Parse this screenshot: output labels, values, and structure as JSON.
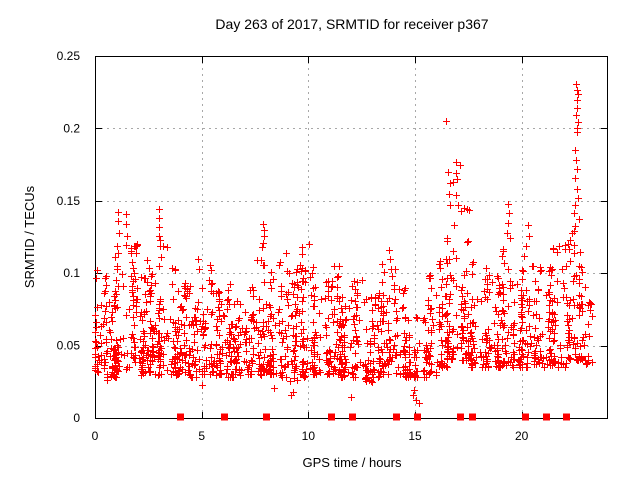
{
  "chart_data": {
    "type": "scatter",
    "title": "Day 263 of 2017, SRMTID for receiver p367",
    "xlabel": "GPS time / hours",
    "ylabel": "SRMTID / TECUs",
    "xlim": [
      0,
      24
    ],
    "ylim": [
      0,
      0.25
    ],
    "xticks": [
      0,
      5,
      10,
      15,
      20
    ],
    "xtick_labels": [
      "0",
      "5",
      "10",
      "15",
      "20"
    ],
    "yticks": [
      0,
      0.05,
      0.1,
      0.15,
      0.2,
      0.25
    ],
    "ytick_labels": [
      "0",
      "0.05",
      "0.1",
      "0.15",
      "0.2",
      "0.25"
    ],
    "grid": "dotted",
    "legend_position": "none",
    "background_color": "#ffffff",
    "axis_color": "#000000",
    "grid_color": "#a8a8a8",
    "series": [
      {
        "name": "SRMTID",
        "marker": "plus",
        "color": "#ff0000",
        "marker_size": 7,
        "bin_format": "[hour_start, hour_end, point_count, y_min, y_max]",
        "band_bins": [
          [
            0,
            0.5,
            42,
            0.032,
            0.105
          ],
          [
            0.5,
            1,
            38,
            0.028,
            0.085
          ],
          [
            1,
            1.5,
            42,
            0.032,
            0.12
          ],
          [
            1.5,
            2,
            46,
            0.035,
            0.125
          ],
          [
            2,
            2.5,
            42,
            0.03,
            0.1
          ],
          [
            2.5,
            3,
            40,
            0.03,
            0.11
          ],
          [
            3,
            3.5,
            42,
            0.03,
            0.125
          ],
          [
            3.5,
            4,
            40,
            0.03,
            0.115
          ],
          [
            4,
            4.5,
            38,
            0.03,
            0.1
          ],
          [
            4.5,
            5,
            36,
            0.028,
            0.082
          ],
          [
            5,
            5.5,
            38,
            0.03,
            0.098
          ],
          [
            5.5,
            6,
            36,
            0.03,
            0.088
          ],
          [
            6,
            6.5,
            38,
            0.028,
            0.095
          ],
          [
            6.5,
            7,
            36,
            0.028,
            0.088
          ],
          [
            7,
            7.5,
            38,
            0.03,
            0.092
          ],
          [
            7.5,
            8,
            42,
            0.03,
            0.12
          ],
          [
            8,
            8.5,
            40,
            0.03,
            0.108
          ],
          [
            8.5,
            9,
            38,
            0.028,
            0.118
          ],
          [
            9,
            9.5,
            38,
            0.025,
            0.108
          ],
          [
            9.5,
            10,
            38,
            0.028,
            0.112
          ],
          [
            10,
            10.5,
            38,
            0.03,
            0.112
          ],
          [
            10.5,
            11,
            36,
            0.03,
            0.095
          ],
          [
            11,
            11.5,
            38,
            0.03,
            0.106
          ],
          [
            11.5,
            12,
            36,
            0.028,
            0.09
          ],
          [
            12,
            12.5,
            36,
            0.028,
            0.1
          ],
          [
            12.5,
            13,
            34,
            0.025,
            0.085
          ],
          [
            13,
            13.5,
            36,
            0.028,
            0.09
          ],
          [
            13.5,
            14,
            38,
            0.03,
            0.11
          ],
          [
            14,
            14.5,
            34,
            0.03,
            0.094
          ],
          [
            14.5,
            15,
            32,
            0.028,
            0.075
          ],
          [
            15,
            15.5,
            30,
            0.028,
            0.07
          ],
          [
            15.5,
            16,
            34,
            0.03,
            0.102
          ],
          [
            16,
            16.5,
            38,
            0.035,
            0.112
          ],
          [
            16.5,
            17,
            42,
            0.04,
            0.13
          ],
          [
            17,
            17.5,
            40,
            0.04,
            0.125
          ],
          [
            17.5,
            18,
            38,
            0.035,
            0.115
          ],
          [
            18,
            18.5,
            36,
            0.035,
            0.105
          ],
          [
            18.5,
            19,
            36,
            0.035,
            0.11
          ],
          [
            19,
            19.5,
            38,
            0.035,
            0.118
          ],
          [
            19.5,
            20,
            36,
            0.035,
            0.105
          ],
          [
            20,
            20.5,
            38,
            0.035,
            0.12
          ],
          [
            20.5,
            21,
            36,
            0.035,
            0.11
          ],
          [
            21,
            21.5,
            38,
            0.035,
            0.112
          ],
          [
            21.5,
            22,
            38,
            0.035,
            0.12
          ],
          [
            22,
            22.5,
            40,
            0.04,
            0.135
          ],
          [
            22.5,
            23,
            40,
            0.04,
            0.128
          ],
          [
            23,
            23.3,
            14,
            0.035,
            0.09
          ]
        ],
        "outlier_points": [
          [
            0.55,
            0.026
          ],
          [
            1.1,
            0.142
          ],
          [
            1.08,
            0.136
          ],
          [
            1.45,
            0.141
          ],
          [
            1.47,
            0.134
          ],
          [
            1.12,
            0.128
          ],
          [
            1.5,
            0.126
          ],
          [
            2.98,
            0.144
          ],
          [
            3.0,
            0.138
          ],
          [
            3.02,
            0.132
          ],
          [
            2.99,
            0.126
          ],
          [
            3.05,
            0.119
          ],
          [
            4.85,
            0.11
          ],
          [
            4.88,
            0.103
          ],
          [
            5.0,
            0.023
          ],
          [
            5.4,
            0.106
          ],
          [
            5.45,
            0.102
          ],
          [
            7.88,
            0.134
          ],
          [
            7.9,
            0.13
          ],
          [
            7.93,
            0.126
          ],
          [
            7.87,
            0.121
          ],
          [
            8.4,
            0.021
          ],
          [
            9.2,
            0.016
          ],
          [
            9.27,
            0.018
          ],
          [
            9.68,
            0.118
          ],
          [
            9.72,
            0.113
          ],
          [
            10.02,
            0.12
          ],
          [
            12.0,
            0.0145
          ],
          [
            13.78,
            0.116
          ],
          [
            13.83,
            0.11
          ],
          [
            14.05,
            0.103
          ],
          [
            14.9,
            0.016
          ],
          [
            14.95,
            0.019
          ],
          [
            15.05,
            0.0125
          ],
          [
            15.2,
            0.0105
          ],
          [
            16.45,
            0.205
          ],
          [
            16.9,
            0.177
          ],
          [
            17.1,
            0.175
          ],
          [
            16.55,
            0.17
          ],
          [
            16.92,
            0.169
          ],
          [
            16.95,
            0.165
          ],
          [
            16.65,
            0.162
          ],
          [
            16.8,
            0.163
          ],
          [
            16.6,
            0.155
          ],
          [
            16.9,
            0.154
          ],
          [
            16.65,
            0.147
          ],
          [
            17.0,
            0.147
          ],
          [
            17.3,
            0.145
          ],
          [
            17.45,
            0.144
          ],
          [
            17.55,
            0.1435
          ],
          [
            17.15,
            0.143
          ],
          [
            16.85,
            0.133
          ],
          [
            19.35,
            0.148
          ],
          [
            19.4,
            0.1415
          ],
          [
            19.37,
            0.135
          ],
          [
            19.3,
            0.128
          ],
          [
            19.45,
            0.124
          ],
          [
            20.3,
            0.133
          ],
          [
            20.36,
            0.126
          ],
          [
            22.57,
            0.2305
          ],
          [
            22.6,
            0.2265
          ],
          [
            22.62,
            0.2235
          ],
          [
            22.58,
            0.2195
          ],
          [
            22.6,
            0.214
          ],
          [
            22.56,
            0.2095
          ],
          [
            22.63,
            0.2045
          ],
          [
            22.59,
            0.2
          ],
          [
            22.61,
            0.1975
          ],
          [
            22.5,
            0.185
          ],
          [
            22.55,
            0.178
          ],
          [
            22.6,
            0.172
          ],
          [
            22.52,
            0.1655
          ],
          [
            22.58,
            0.158
          ],
          [
            22.62,
            0.152
          ],
          [
            22.48,
            0.147
          ],
          [
            22.45,
            0.1415
          ],
          [
            22.68,
            0.1375
          ]
        ]
      },
      {
        "name": "baseline-flags",
        "marker": "filled-square",
        "color": "#ff0000",
        "marker_size": 7,
        "y": 0,
        "x": [
          4.0,
          6.05,
          8.0,
          11.05,
          12.05,
          14.1,
          15.1,
          17.1,
          17.65,
          20.15,
          21.15,
          22.1
        ]
      }
    ]
  }
}
